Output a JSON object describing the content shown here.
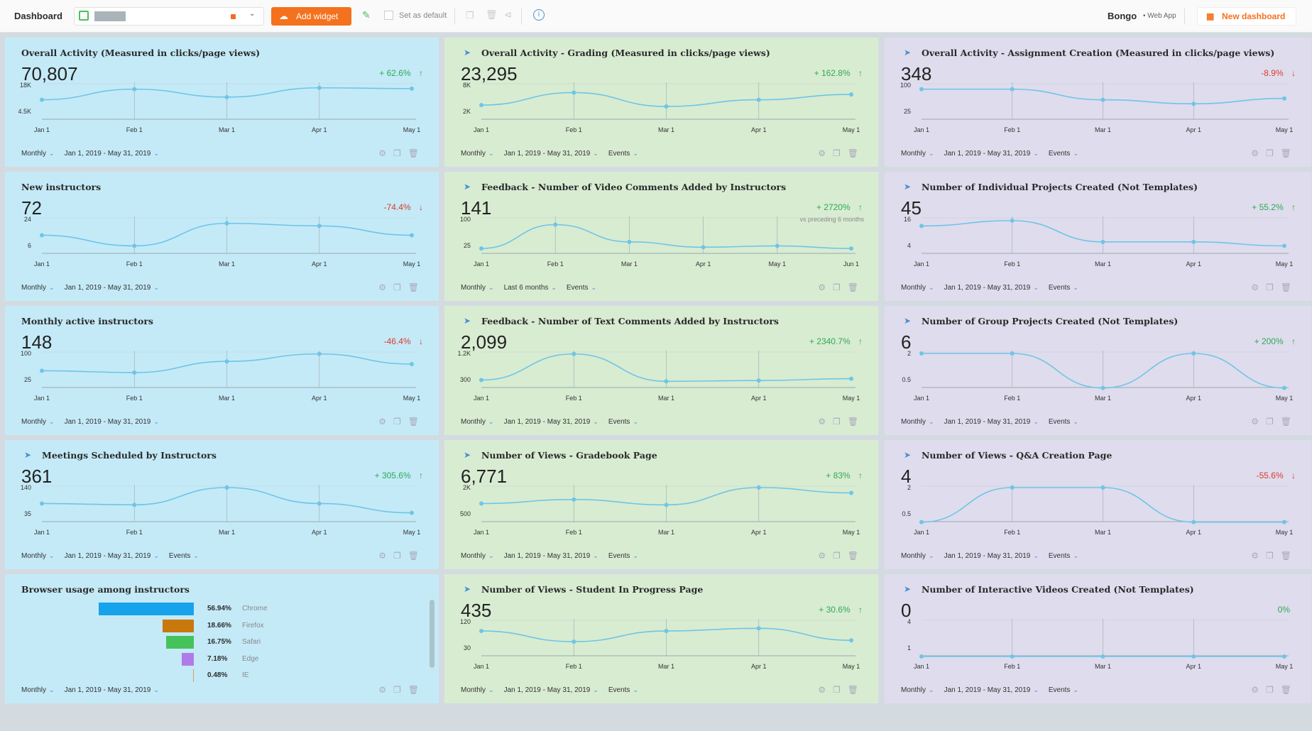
{
  "topbar": {
    "title": "Dashboard",
    "add_widget": "Add widget",
    "set_default": "Set as default",
    "brand": "Bongo",
    "brand_sub": "• Web App",
    "new_dashboard": "New dashboard"
  },
  "footer_labels": {
    "settings": "gear-icon",
    "copy": "copy-icon",
    "delete": "trash-icon"
  },
  "cards": [
    {
      "title": "Overall Activity (Measured in clicks/page views)",
      "icon": false,
      "value": "70,807",
      "delta": "+ 62.6%",
      "dir": "up",
      "yticks": [
        "18K",
        "4.5K"
      ],
      "xticks": [
        "Jan 1",
        "Feb 1",
        "Mar 1",
        "Apr 1",
        "May 1"
      ],
      "points": [
        0.55,
        0.15,
        0.45,
        0.1,
        0.13
      ],
      "footer": [
        "Monthly",
        "Jan 1, 2019 - May 31, 2019"
      ]
    },
    {
      "title": "Overall Activity - Grading (Measured in clicks/page views)",
      "icon": true,
      "value": "23,295",
      "delta": "+ 162.8%",
      "dir": "up",
      "yticks": [
        "8K",
        "2K"
      ],
      "xticks": [
        "Jan 1",
        "Feb 1",
        "Mar 1",
        "Apr 1",
        "May 1"
      ],
      "points": [
        0.75,
        0.28,
        0.8,
        0.55,
        0.35
      ],
      "footer": [
        "Monthly",
        "Jan 1, 2019 - May 31, 2019",
        "Events"
      ]
    },
    {
      "title": "Overall Activity - Assignment Creation (Measured in clicks/page views)",
      "icon": true,
      "value": "348",
      "delta": "-8.9%",
      "dir": "down",
      "yticks": [
        "100",
        "25"
      ],
      "xticks": [
        "Jan 1",
        "Feb 1",
        "Mar 1",
        "Apr 1",
        "May 1"
      ],
      "points": [
        0.15,
        0.15,
        0.55,
        0.7,
        0.5
      ],
      "footer": [
        "Monthly",
        "Jan 1, 2019 - May 31, 2019",
        "Events"
      ]
    },
    {
      "title": "New instructors",
      "icon": false,
      "value": "72",
      "delta": "-74.4%",
      "dir": "down",
      "yticks": [
        "24",
        "6"
      ],
      "xticks": [
        "Jan 1",
        "Feb 1",
        "Mar 1",
        "Apr 1",
        "May 1"
      ],
      "points": [
        0.6,
        1.0,
        0.15,
        0.25,
        0.6
      ],
      "footer": [
        "Monthly",
        "Jan 1, 2019 - May 31, 2019"
      ]
    },
    {
      "title": "Feedback - Number of Video Comments Added by Instructors",
      "icon": true,
      "value": "141",
      "delta": "+ 2720%",
      "dir": "up",
      "note": "vs preceding 6 months",
      "yticks": [
        "100",
        "25"
      ],
      "xticks": [
        "Jan 1",
        "Feb 1",
        "Mar 1",
        "Apr 1",
        "May 1",
        "Jun 1"
      ],
      "points": [
        1.1,
        0.2,
        0.85,
        1.05,
        1.0,
        1.1
      ],
      "footer": [
        "Monthly",
        "Last 6 months",
        "Events"
      ]
    },
    {
      "title": "Number of Individual Projects Created (Not Templates)",
      "icon": true,
      "value": "45",
      "delta": "+ 55.2%",
      "dir": "up",
      "yticks": [
        "16",
        "4"
      ],
      "xticks": [
        "Jan 1",
        "Feb 1",
        "Mar 1",
        "Apr 1",
        "May 1"
      ],
      "points": [
        0.25,
        0.05,
        0.85,
        0.85,
        1.0
      ],
      "footer": [
        "Monthly",
        "Jan 1, 2019 - May 31, 2019",
        "Events"
      ]
    },
    {
      "title": "Monthly active instructors",
      "icon": false,
      "value": "148",
      "delta": "-46.4%",
      "dir": "down",
      "yticks": [
        "100",
        "25"
      ],
      "xticks": [
        "Jan 1",
        "Feb 1",
        "Mar 1",
        "Apr 1",
        "May 1"
      ],
      "points": [
        0.65,
        0.72,
        0.3,
        0.02,
        0.4
      ],
      "footer": [
        "Monthly",
        "Jan 1, 2019 - May 31, 2019"
      ]
    },
    {
      "title": "Feedback - Number of Text Comments Added by Instructors",
      "icon": true,
      "value": "2,099",
      "delta": "+ 2340.7%",
      "dir": "up",
      "yticks": [
        "1.2K",
        "300"
      ],
      "xticks": [
        "Jan 1",
        "Feb 1",
        "Mar 1",
        "Apr 1",
        "May 1"
      ],
      "points": [
        1.0,
        0.02,
        1.05,
        1.02,
        0.95
      ],
      "footer": [
        "Monthly",
        "Jan 1, 2019 - May 31, 2019",
        "Events"
      ]
    },
    {
      "title": "Number of Group Projects Created (Not Templates)",
      "icon": true,
      "value": "6",
      "delta": "+ 200%",
      "dir": "up",
      "yticks": [
        "2",
        "0.5"
      ],
      "xticks": [
        "Jan 1",
        "Feb 1",
        "Mar 1",
        "Apr 1",
        "May 1"
      ],
      "points": [
        0.0,
        0.0,
        1.3,
        0.0,
        1.3
      ],
      "footer": [
        "Monthly",
        "Jan 1, 2019 - May 31, 2019",
        "Events"
      ]
    },
    {
      "title": "Meetings Scheduled by Instructors",
      "icon": true,
      "value": "361",
      "delta": "+ 305.6%",
      "dir": "up",
      "yticks": [
        "140",
        "35"
      ],
      "xticks": [
        "Jan 1",
        "Feb 1",
        "Mar 1",
        "Apr 1",
        "May 1"
      ],
      "points": [
        0.6,
        0.65,
        0.0,
        0.6,
        0.95
      ],
      "footer": [
        "Monthly",
        "Jan 1, 2019 - May 31, 2019",
        "Events"
      ]
    },
    {
      "title": "Number of Views - Gradebook Page",
      "icon": true,
      "value": "6,771",
      "delta": "+ 83%",
      "dir": "up",
      "yticks": [
        "2K",
        "500"
      ],
      "xticks": [
        "Jan 1",
        "Feb 1",
        "Mar 1",
        "Apr 1",
        "May 1"
      ],
      "points": [
        0.6,
        0.45,
        0.65,
        0.0,
        0.2
      ],
      "footer": [
        "Monthly",
        "Jan 1, 2019 - May 31, 2019",
        "Events"
      ]
    },
    {
      "title": "Number of Views - Q&A Creation Page",
      "icon": true,
      "value": "4",
      "delta": "-55.6%",
      "dir": "down",
      "yticks": [
        "2",
        "0.5"
      ],
      "xticks": [
        "Jan 1",
        "Feb 1",
        "Mar 1",
        "Apr 1",
        "May 1"
      ],
      "points": [
        1.3,
        0.0,
        0.0,
        1.3,
        1.3
      ],
      "footer": [
        "Monthly",
        "Jan 1, 2019 - May 31, 2019",
        "Events"
      ]
    },
    {
      "title": "Browser usage among instructors",
      "icon": false,
      "type": "bars",
      "bars": [
        {
          "pct": "56.94%",
          "name": "Chrome",
          "v": 56.94,
          "color": "#17a3ec"
        },
        {
          "pct": "18.66%",
          "name": "Firefox",
          "v": 18.66,
          "color": "#c8780c"
        },
        {
          "pct": "16.75%",
          "name": "Safari",
          "v": 16.75,
          "color": "#46c25a"
        },
        {
          "pct": "7.18%",
          "name": "Edge",
          "v": 7.18,
          "color": "#b07be8"
        },
        {
          "pct": "0.48%",
          "name": "IE",
          "v": 0.48,
          "color": "#d9a05a"
        }
      ],
      "footer": [
        "Monthly",
        "Jan 1, 2019 - May 31, 2019"
      ]
    },
    {
      "title": "Number of Views - Student In Progress Page",
      "icon": true,
      "value": "435",
      "delta": "+ 30.6%",
      "dir": "up",
      "yticks": [
        "120",
        "30"
      ],
      "xticks": [
        "Jan 1",
        "Feb 1",
        "Mar 1",
        "Apr 1",
        "May 1"
      ],
      "points": [
        0.35,
        0.75,
        0.35,
        0.25,
        0.7
      ],
      "footer": [
        "Monthly",
        "Jan 1, 2019 - May 31, 2019",
        "Events"
      ]
    },
    {
      "title": "Number of Interactive Videos Created (Not Templates)",
      "icon": true,
      "value": "0",
      "delta": "0%",
      "dir": "flat",
      "yticks": [
        "4",
        "1"
      ],
      "xticks": [
        "Jan 1",
        "Feb 1",
        "Mar 1",
        "Apr 1",
        "May 1"
      ],
      "points": [
        1.35,
        1.35,
        1.35,
        1.35,
        1.35
      ],
      "footer": [
        "Monthly",
        "Jan 1, 2019 - May 31, 2019",
        "Events"
      ]
    }
  ]
}
